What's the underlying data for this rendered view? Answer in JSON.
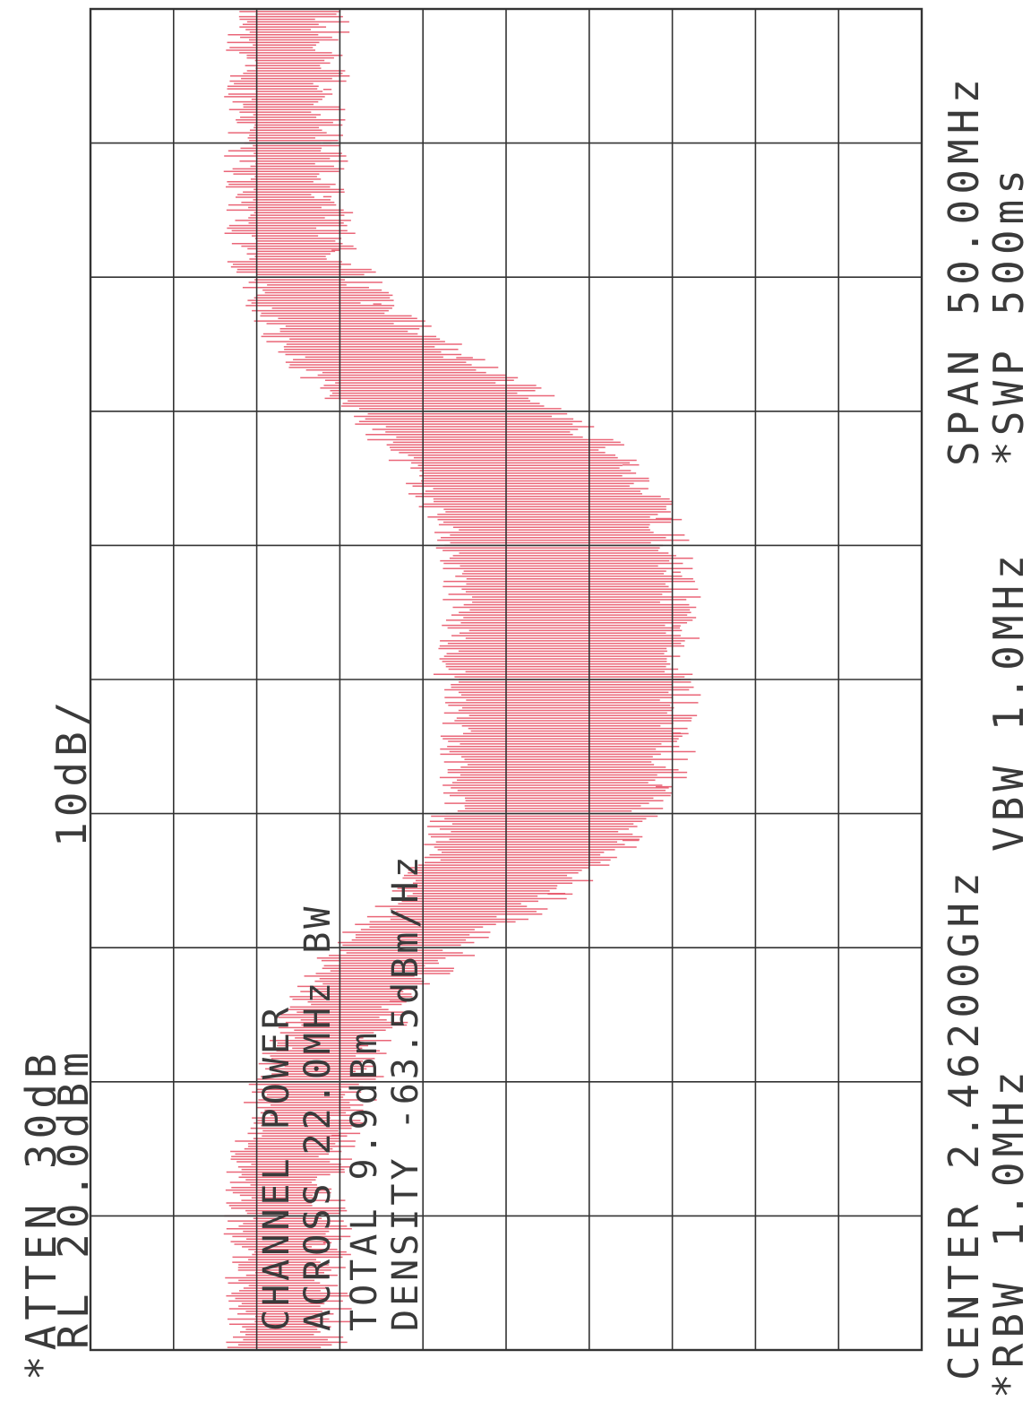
{
  "header": {
    "atten": "*ATTEN 30dB",
    "ref_level": "RL 20.0dBm",
    "scale": "10dB/"
  },
  "annotations": {
    "line1": "CHANNEL POWER",
    "line2": "ACROSS 22.0MHz BW",
    "line3": "TOTAL 9.9dBm",
    "line4": "DENSITY -63.5dBm/Hz"
  },
  "footer": {
    "center": "CENTER 2.46200GHz",
    "span": "SPAN 50.00MHz",
    "rbw": "*RBW 1.0MHz",
    "vbw": "VBW 1.0MHz",
    "sweep": "*SWP 500ms"
  },
  "colors": {
    "trace": "#e8566a",
    "grid": "#333333",
    "text": "#3a3a3a"
  },
  "chart_data": {
    "type": "line",
    "title": "",
    "xlabel": "",
    "ylabel": "",
    "orientation": "rotated-90-clockwise",
    "x_unit": "MHz",
    "y_unit": "dBm",
    "xlim": [
      2437.0,
      2487.0
    ],
    "ylim": [
      -80.0,
      20.0
    ],
    "grid": true,
    "grid_divisions": {
      "x": 10,
      "y": 10
    },
    "series": [
      {
        "x": [
          2437.0,
          2441.0,
          2443.0,
          2445.0,
          2447.0,
          2450.0,
          2452.0,
          2454.0,
          2456.0,
          2458.0,
          2460.0,
          2462.0,
          2464.0,
          2466.0,
          2468.0,
          2470.0,
          2472.0,
          2474.0,
          2476.0,
          2478.0,
          2480.0,
          2482.0,
          2484.0,
          2487.0
        ],
        "min": [
          -62,
          -62,
          -62,
          -61,
          -59,
          -55,
          -50,
          -42,
          -38,
          -36,
          -36,
          -37,
          -36,
          -36,
          -38,
          -42,
          -48,
          -56,
          -60,
          -62,
          -62,
          -62,
          -62,
          -62
        ],
        "max": [
          -52,
          -52,
          -52,
          -51,
          -48,
          -44,
          -36,
          -25,
          -16,
          -12,
          -10,
          -10,
          -10,
          -10,
          -12,
          -16,
          -24,
          -36,
          -46,
          -51,
          -52,
          -52,
          -52,
          -52
        ],
        "peak": [
          -51,
          -51,
          -51,
          -50,
          -46,
          -42,
          -34,
          -22,
          -14,
          -10,
          -9,
          -9,
          -9,
          -9,
          -10,
          -14,
          -22,
          -34,
          -45,
          -50,
          -51,
          -51,
          -51,
          -51
        ]
      }
    ]
  }
}
